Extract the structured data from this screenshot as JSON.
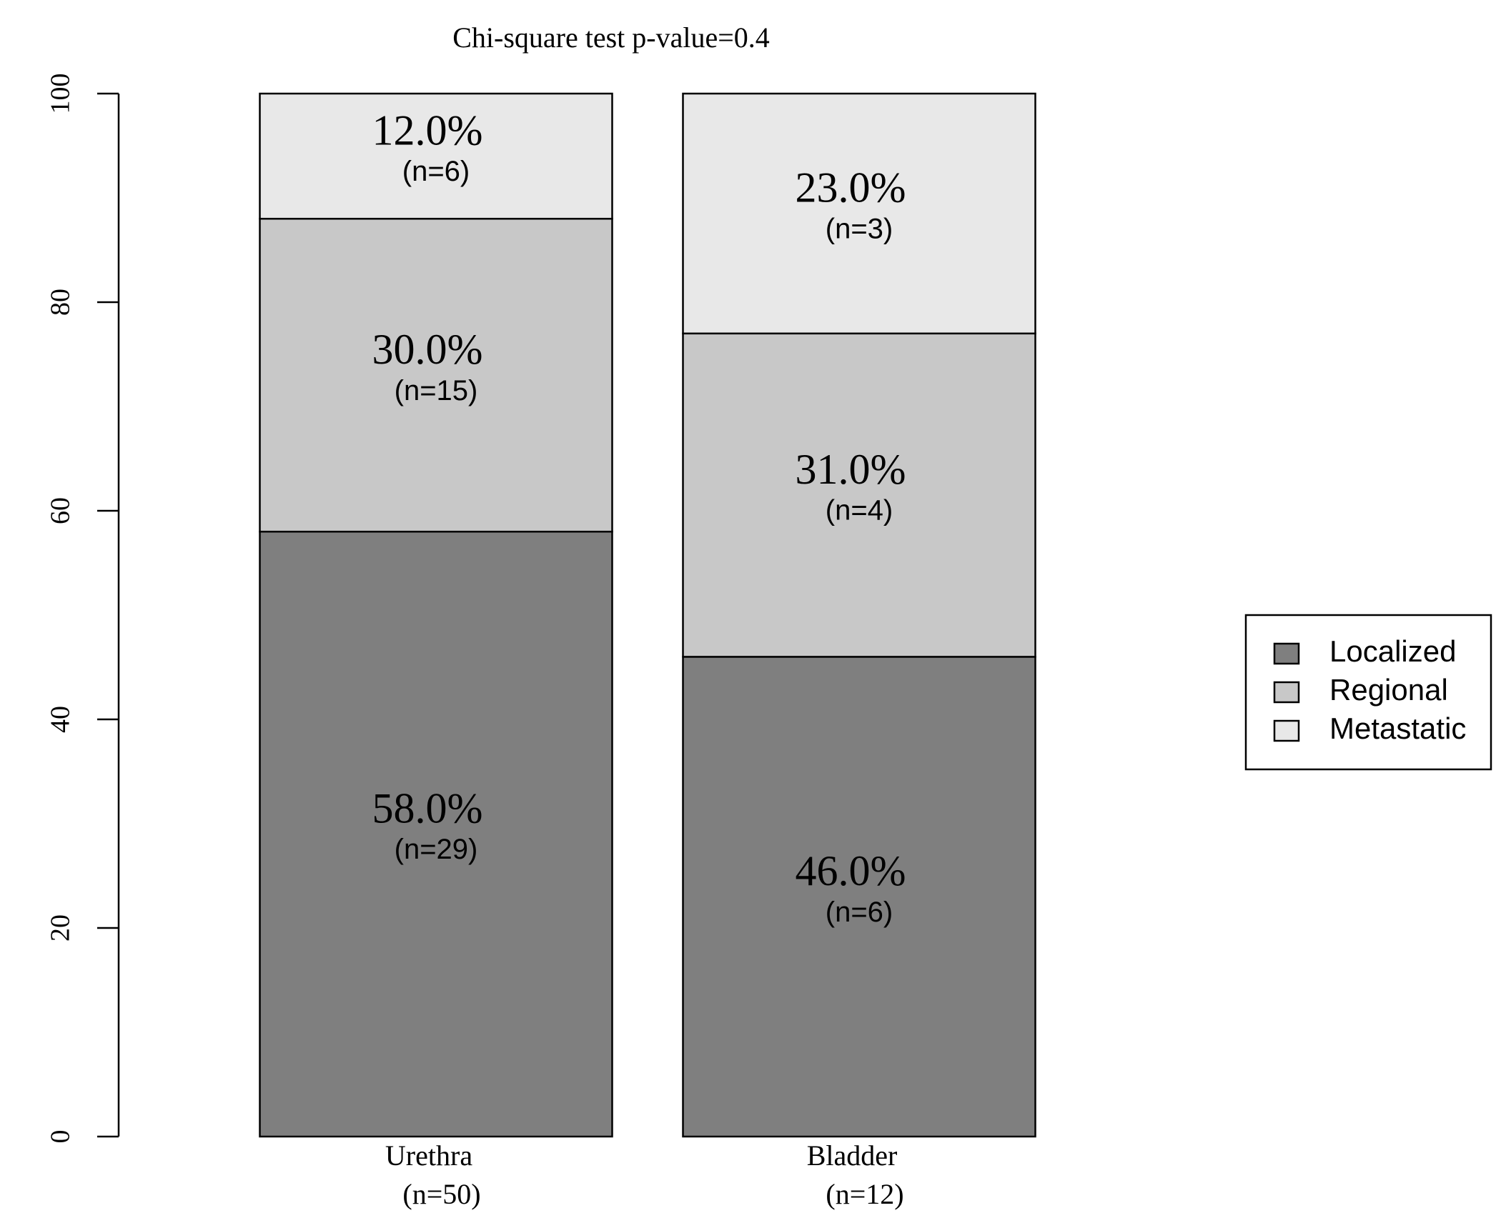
{
  "chart_data": {
    "type": "stacked_bar",
    "title": "Chi-square test p-value=0.4",
    "categories": [
      "Urethra",
      "Bladder"
    ],
    "category_counts": [
      "(n=50)",
      "(n=12)"
    ],
    "series": [
      {
        "name": "Localized",
        "color": "#7f7f7f",
        "values": [
          58,
          46
        ],
        "value_labels": [
          "58.0%",
          "46.0%"
        ],
        "count_labels": [
          "(n=29)",
          "(n=6)"
        ]
      },
      {
        "name": "Regional",
        "color": "#c8c8c8",
        "values": [
          30,
          31
        ],
        "value_labels": [
          "30.0%",
          "31.0%"
        ],
        "count_labels": [
          "(n=15)",
          "(n=4)"
        ]
      },
      {
        "name": "Metastatic",
        "color": "#e8e8e8",
        "values": [
          12,
          23
        ],
        "value_labels": [
          "12.0%",
          "23.0%"
        ],
        "count_labels": [
          "(n=6)",
          "(n=3)"
        ]
      }
    ],
    "ylim": [
      0,
      100
    ],
    "yticks": [
      0,
      20,
      40,
      60,
      80,
      100
    ],
    "grid": false,
    "legend": "right"
  }
}
